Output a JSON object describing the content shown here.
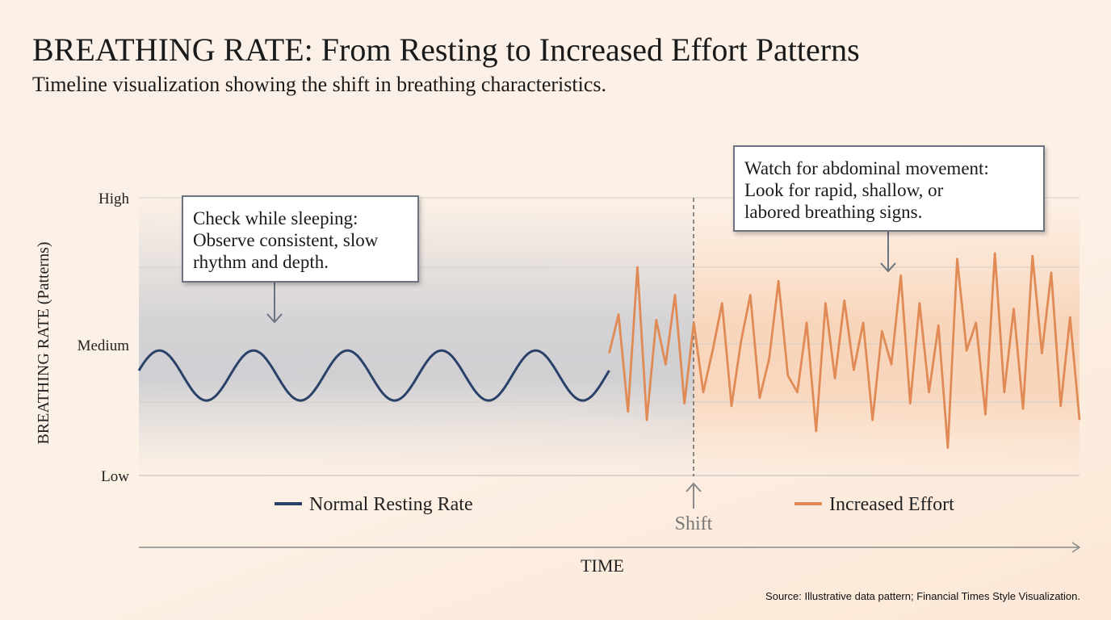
{
  "title": "BREATHING RATE: From Resting to Increased Effort Patterns",
  "subtitle": "Timeline visualization showing the shift in breathing characteristics.",
  "source": "Source: Illustrative data pattern; Financial Times Style Visualization.",
  "chart_data": {
    "type": "line",
    "ylabel": "BREATHING RATE (Patterns)",
    "xlabel": "TIME",
    "y_ticks": [
      "High",
      "Medium",
      "Low"
    ],
    "grid": true,
    "shift_label": "Shift",
    "shift_at": 50,
    "legend": {
      "normal": "Normal Resting Rate",
      "effort": "Increased Effort"
    },
    "series": [
      {
        "name": "Normal Resting Rate",
        "color": "#2a4169",
        "pattern": "sine",
        "x_range": [
          0,
          50
        ],
        "cycles": 5,
        "center": 0.36,
        "amplitude": 0.09
      },
      {
        "name": "Increased Effort",
        "color": "#e08a55",
        "x": [
          50,
          51,
          52,
          53,
          54,
          55,
          56,
          57,
          58,
          59,
          60,
          61,
          62,
          63,
          64,
          65,
          66,
          67,
          68,
          69,
          70,
          71,
          72,
          73,
          74,
          75,
          76,
          77,
          78,
          79,
          80,
          81,
          82,
          83,
          84,
          85,
          86,
          87,
          88,
          89,
          90,
          91,
          92,
          93,
          94,
          95,
          96,
          97,
          98,
          99,
          100
        ],
        "values": [
          0.44,
          0.58,
          0.23,
          0.75,
          0.2,
          0.56,
          0.4,
          0.65,
          0.26,
          0.55,
          0.3,
          0.45,
          0.62,
          0.25,
          0.48,
          0.65,
          0.28,
          0.42,
          0.7,
          0.36,
          0.3,
          0.55,
          0.16,
          0.62,
          0.35,
          0.63,
          0.38,
          0.55,
          0.2,
          0.52,
          0.4,
          0.72,
          0.26,
          0.62,
          0.3,
          0.54,
          0.1,
          0.78,
          0.45,
          0.55,
          0.22,
          0.8,
          0.3,
          0.6,
          0.24,
          0.79,
          0.44,
          0.73,
          0.25,
          0.57,
          0.2
        ]
      }
    ],
    "annotations": [
      {
        "lines": [
          "Check while sleeping:",
          "Observe consistent, slow",
          "rhythm and depth."
        ]
      },
      {
        "lines": [
          "Watch for abdominal movement:",
          "Look for rapid, shallow, or",
          "labored breathing signs."
        ]
      }
    ]
  }
}
